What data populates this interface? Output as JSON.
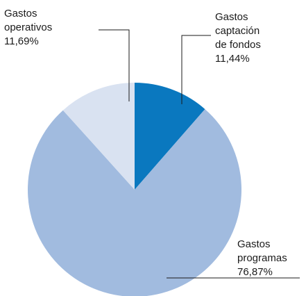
{
  "chart_data": {
    "type": "pie",
    "slices": [
      {
        "label_lines": [
          "Gastos",
          "captación",
          "de fondos",
          "11,44%"
        ],
        "value": 11.44,
        "color": "#0a78bf"
      },
      {
        "label_lines": [
          "Gastos",
          "programas",
          "76,87%"
        ],
        "value": 76.87,
        "color": "#a1bbdf"
      },
      {
        "label_lines": [
          "Gastos",
          "operativos",
          "11,69%"
        ],
        "value": 11.69,
        "color": "#d9e2f1"
      }
    ],
    "start_angle_deg": 0,
    "direction": "clockwise",
    "legend": "none"
  }
}
